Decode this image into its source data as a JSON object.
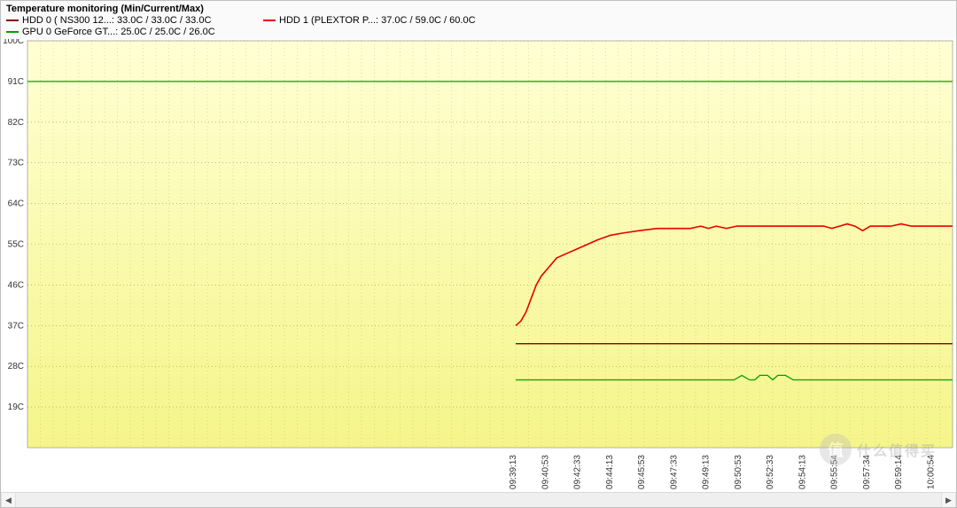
{
  "title": "Temperature monitoring  (Min/Current/Max)",
  "legend": {
    "items": [
      {
        "color": "#8b0000",
        "label": "HDD 0 ( NS300 12...: 33.0C / 33.0C / 33.0C"
      },
      {
        "color": "#e60000",
        "label": "HDD 1 (PLEXTOR P...: 37.0C / 59.0C / 60.0C"
      },
      {
        "color": "#00a000",
        "label": "GPU 0 GeForce GT...: 25.0C / 25.0C / 26.0C"
      }
    ]
  },
  "chart": {
    "type": "line",
    "background_top": "#ffffd4",
    "background_bottom": "#f5f58a",
    "grid_color": "#9a9a40",
    "grid_dash": "1 3",
    "ymin": 10,
    "ymax": 100,
    "ytick_step": 9,
    "yticks": [
      19,
      28,
      37,
      46,
      55,
      64,
      73,
      82,
      91,
      100
    ],
    "ytick_labels": [
      "19C",
      "28C",
      "37C",
      "46C",
      "55C",
      "64C",
      "73C",
      "82C",
      "91C",
      "100C"
    ],
    "yaxis_label_color": "#333333",
    "xaxis_label_color": "#333333",
    "yaxis_font_size": 10,
    "xaxis_font_size": 10,
    "xmin": 0,
    "xmax": 36,
    "x_data_start": 19,
    "xtick_positions": [
      19,
      20.25,
      21.5,
      22.75,
      24,
      25.25,
      26.5,
      27.75,
      29,
      30.25,
      31.5,
      32.75,
      34,
      35.25
    ],
    "xtick_labels": [
      "09:39:13",
      "09:40:53",
      "09:42:33",
      "09:44:13",
      "09:45:53",
      "09:47:33",
      "09:49:13",
      "09:50:53",
      "09:52:33",
      "09:54:13",
      "09:55:54",
      "09:57:34",
      "09:59:14",
      "10:00:54"
    ],
    "reference_line": {
      "color": "#00a000",
      "y": 91,
      "width": 1.2
    },
    "series": [
      {
        "name": "HDD0",
        "color": "#8b0000",
        "width": 1.3,
        "points": [
          [
            19,
            33
          ],
          [
            36,
            33
          ]
        ]
      },
      {
        "name": "GPU0",
        "color": "#00a000",
        "width": 1.3,
        "points": [
          [
            19,
            25
          ],
          [
            27.5,
            25
          ],
          [
            27.8,
            26
          ],
          [
            28.1,
            25
          ],
          [
            28.3,
            25
          ],
          [
            28.5,
            26
          ],
          [
            28.8,
            26
          ],
          [
            29.0,
            25
          ],
          [
            29.2,
            26
          ],
          [
            29.5,
            26
          ],
          [
            29.8,
            25
          ],
          [
            36,
            25
          ]
        ]
      },
      {
        "name": "HDD1",
        "color": "#e60000",
        "width": 1.6,
        "points": [
          [
            19,
            37
          ],
          [
            19.2,
            38
          ],
          [
            19.4,
            40
          ],
          [
            19.6,
            43
          ],
          [
            19.8,
            46
          ],
          [
            20.0,
            48
          ],
          [
            20.3,
            50
          ],
          [
            20.6,
            52
          ],
          [
            21.0,
            53
          ],
          [
            21.4,
            54
          ],
          [
            21.8,
            55
          ],
          [
            22.2,
            56
          ],
          [
            22.7,
            57
          ],
          [
            23.2,
            57.5
          ],
          [
            23.8,
            58
          ],
          [
            24.5,
            58.5
          ],
          [
            25.2,
            58.5
          ],
          [
            25.8,
            58.5
          ],
          [
            26.2,
            59
          ],
          [
            26.5,
            58.5
          ],
          [
            26.8,
            59
          ],
          [
            27.2,
            58.5
          ],
          [
            27.6,
            59
          ],
          [
            28.0,
            59
          ],
          [
            30.0,
            59
          ],
          [
            31.0,
            59
          ],
          [
            31.3,
            58.5
          ],
          [
            31.6,
            59
          ],
          [
            31.9,
            59.5
          ],
          [
            32.2,
            59
          ],
          [
            32.5,
            58
          ],
          [
            32.8,
            59
          ],
          [
            33.2,
            59
          ],
          [
            33.6,
            59
          ],
          [
            34.0,
            59.5
          ],
          [
            34.4,
            59
          ],
          [
            36,
            59
          ]
        ]
      }
    ]
  },
  "scrollbar": {
    "left_glyph": "◀",
    "right_glyph": "▶"
  },
  "watermark": {
    "badge": "值",
    "text": "什么值得买"
  }
}
